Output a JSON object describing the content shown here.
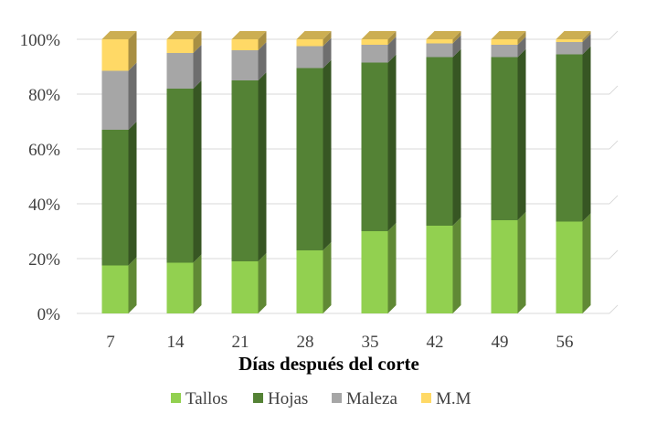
{
  "chart_data": {
    "type": "bar",
    "stacked": "percent",
    "categories": [
      "7",
      "14",
      "21",
      "28",
      "35",
      "42",
      "49",
      "56"
    ],
    "series": [
      {
        "name": "Tallos",
        "color": "#92D050",
        "values": [
          17.5,
          18.5,
          19,
          23,
          30,
          32,
          34,
          33.5
        ]
      },
      {
        "name": "Hojas",
        "color": "#548235",
        "values": [
          49.5,
          63.5,
          66,
          66.5,
          61.5,
          61.5,
          59.5,
          61
        ]
      },
      {
        "name": "Maleza",
        "color": "#A6A6A6",
        "values": [
          21.5,
          13,
          11,
          8,
          6.5,
          5,
          4.5,
          4.5
        ]
      },
      {
        "name": "M.M",
        "color": "#FFD966",
        "values": [
          11.5,
          5,
          4,
          2.5,
          2,
          1.5,
          2,
          1
        ]
      }
    ],
    "yticks": [
      "0%",
      "20%",
      "40%",
      "60%",
      "80%",
      "100%"
    ],
    "ylim": [
      0,
      100
    ],
    "xlabel": "Días después del corte",
    "ylabel": "",
    "title": "",
    "grid": true,
    "legend_position": "bottom",
    "style": "3d-columns"
  }
}
